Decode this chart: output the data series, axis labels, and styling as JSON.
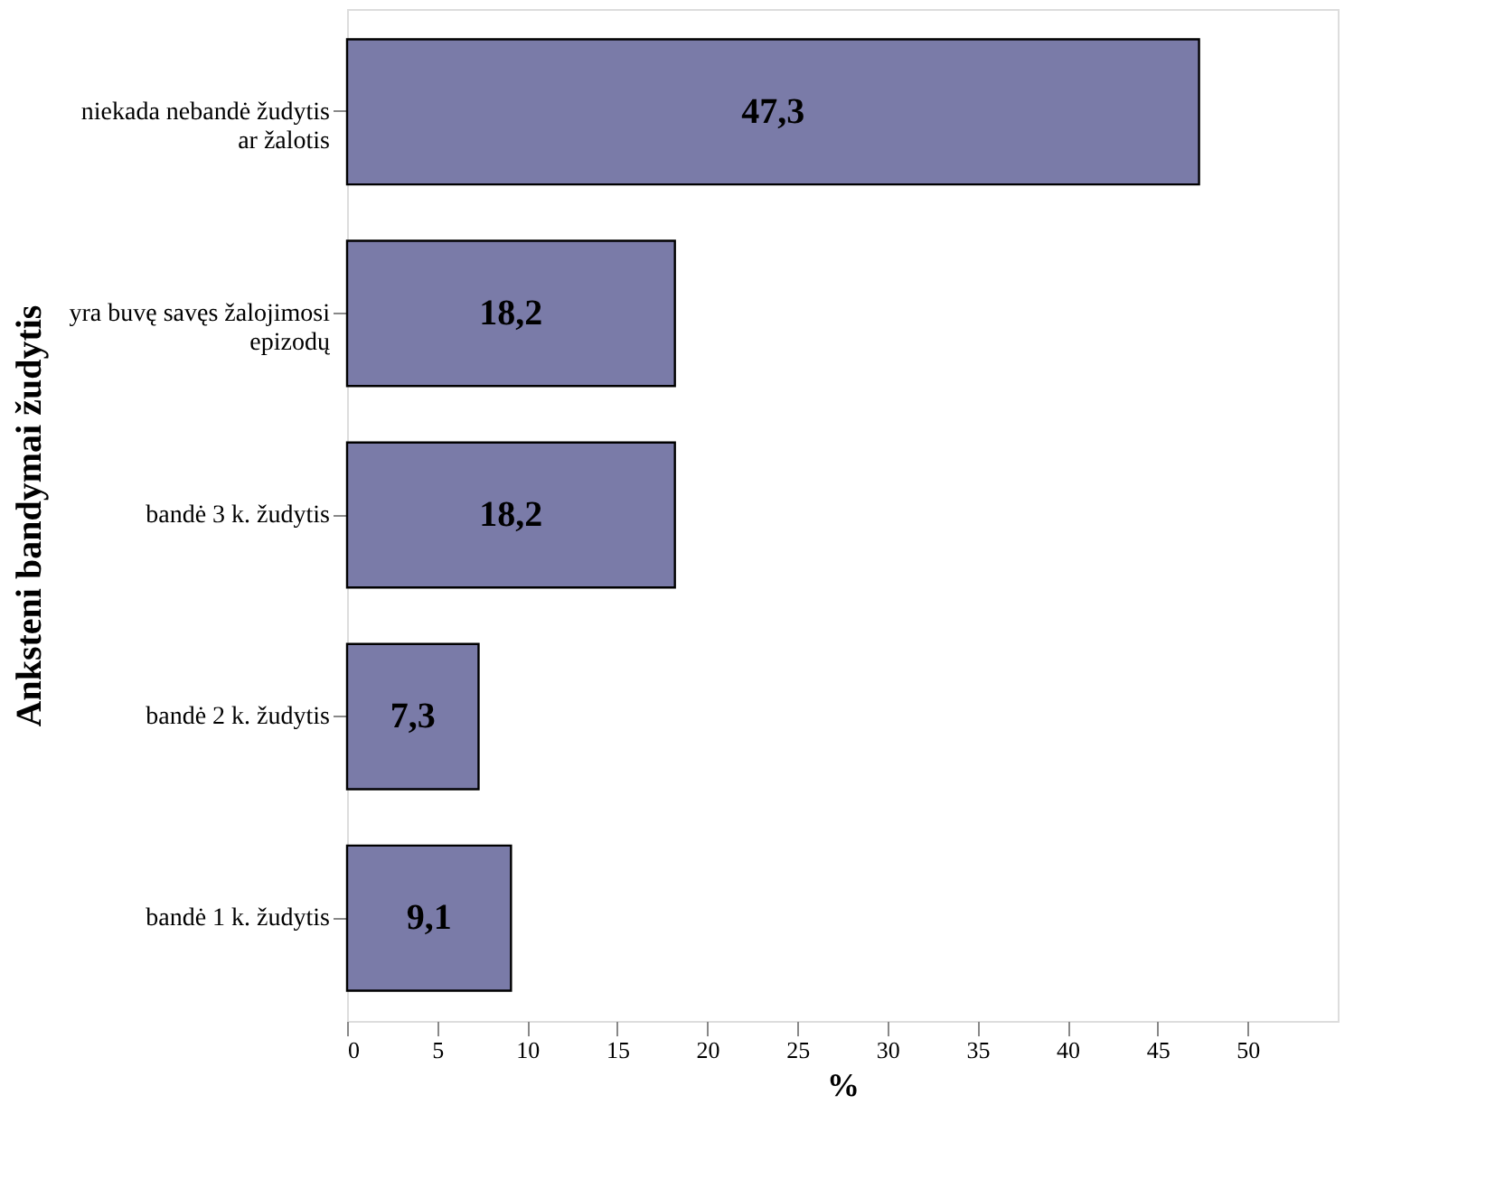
{
  "chart_data": {
    "type": "bar",
    "orientation": "horizontal",
    "xlabel": "%",
    "ylabel": "Anksteni bandymai žudytis",
    "categories": [
      "niekada nebandė žudytis\nar žalotis",
      "yra buvę savęs žalojimosi\nepizodų",
      "bandė 3 k. žudytis",
      "bandė 2 k. žudytis",
      "bandė 1 k. žudytis"
    ],
    "values": [
      47.3,
      18.2,
      18.2,
      7.3,
      9.1
    ],
    "value_labels": [
      "47,3",
      "18,2",
      "18,2",
      "7,3",
      "9,1"
    ],
    "color": "#7a7ba8",
    "xlim": [
      0,
      55
    ],
    "xticks": [
      0,
      5,
      10,
      15,
      20,
      25,
      30,
      35,
      40,
      45,
      50
    ],
    "grid": false
  }
}
